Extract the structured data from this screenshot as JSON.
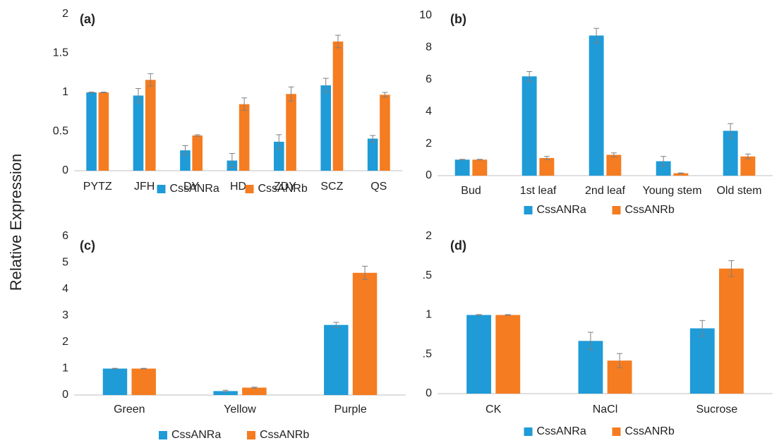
{
  "y_label": "Relative Expression",
  "chart_data": [
    {
      "type": "bar",
      "panel_label": "(a)",
      "categories": [
        "PYTZ",
        "JFH",
        "DY",
        "HD",
        "ZDY",
        "SCZ",
        "QS"
      ],
      "series": [
        {
          "name": "CssANRa",
          "color": "#1f9bd7",
          "values": [
            1.0,
            0.96,
            0.26,
            0.13,
            0.37,
            1.09,
            0.41
          ],
          "errors": [
            0.005,
            0.09,
            0.06,
            0.09,
            0.09,
            0.09,
            0.04
          ]
        },
        {
          "name": "CssANRb",
          "color": "#f57c20",
          "values": [
            1.0,
            1.16,
            0.45,
            0.85,
            0.98,
            1.65,
            0.97
          ],
          "errors": [
            0.005,
            0.08,
            0.01,
            0.08,
            0.09,
            0.08,
            0.03
          ]
        }
      ],
      "ylim": [
        0,
        2
      ],
      "yticks": [
        0,
        0.5,
        1,
        1.5,
        2
      ]
    },
    {
      "type": "bar",
      "panel_label": "(b)",
      "categories": [
        "Bud",
        "1st leaf",
        "2nd leaf",
        "Young stem",
        "Old stem"
      ],
      "series": [
        {
          "name": "CssANRa",
          "color": "#1f9bd7",
          "values": [
            1.0,
            6.2,
            8.75,
            0.9,
            2.8
          ],
          "errors": [
            0.02,
            0.3,
            0.45,
            0.3,
            0.45
          ]
        },
        {
          "name": "CssANRb",
          "color": "#f57c20",
          "values": [
            1.0,
            1.1,
            1.3,
            0.15,
            1.2
          ],
          "errors": [
            0.02,
            0.1,
            0.12,
            0.02,
            0.15
          ]
        }
      ],
      "ylim": [
        0,
        10
      ],
      "yticks": [
        0,
        2,
        4,
        6,
        8,
        10
      ]
    },
    {
      "type": "bar",
      "panel_label": "(c)",
      "categories": [
        "Green",
        "Yellow",
        "Purple"
      ],
      "series": [
        {
          "name": "CssANRa",
          "color": "#1f9bd7",
          "values": [
            1.0,
            0.15,
            2.65
          ],
          "errors": [
            0.01,
            0.03,
            0.1
          ]
        },
        {
          "name": "CssANRb",
          "color": "#f57c20",
          "values": [
            1.0,
            0.28,
            4.62
          ],
          "errors": [
            0.01,
            0.02,
            0.25
          ]
        }
      ],
      "ylim": [
        0,
        6
      ],
      "yticks": [
        0,
        1,
        2,
        3,
        4,
        5,
        6
      ]
    },
    {
      "type": "bar",
      "panel_label": "(d)",
      "categories": [
        "CK",
        "NaCl",
        "Sucrose"
      ],
      "series": [
        {
          "name": "CssANRa",
          "color": "#1f9bd7",
          "values": [
            1.0,
            0.67,
            0.83
          ],
          "errors": [
            0.005,
            0.11,
            0.1
          ]
        },
        {
          "name": "CssANRb",
          "color": "#f57c20",
          "values": [
            1.0,
            0.42,
            1.59
          ],
          "errors": [
            0.005,
            0.09,
            0.1
          ]
        }
      ],
      "ylim": [
        0,
        2
      ],
      "yticks": [
        0,
        {
          "value": 0.5,
          "label": ".5"
        },
        1,
        {
          "value": 1.5,
          "label": ".5"
        },
        2
      ]
    }
  ]
}
